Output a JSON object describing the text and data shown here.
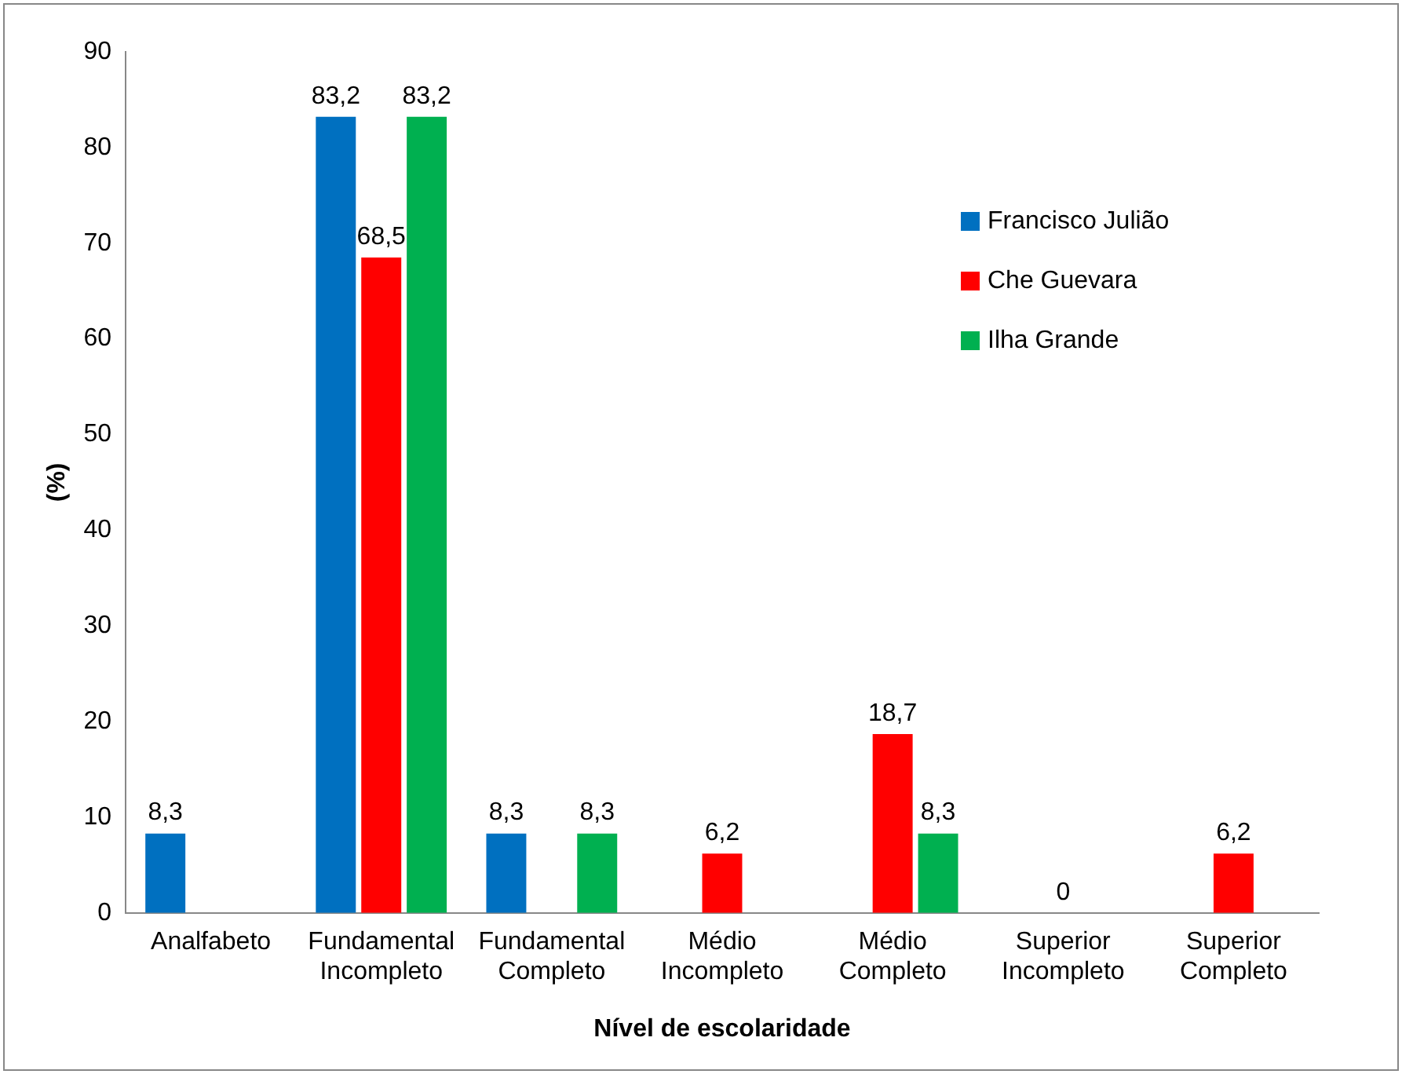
{
  "chart_data": {
    "type": "bar",
    "xlabel": "Nível de escolaridade",
    "ylabel": "(%)",
    "categories": [
      "Analfabeto",
      "Fundamental Incompleto",
      "Fundamental Completo",
      "Médio Incompleto",
      "Médio Completo",
      "Superior Incompleto",
      "Superior Completo"
    ],
    "series": [
      {
        "name": "Francisco Julião",
        "color": "#0070c0",
        "values": [
          8.3,
          83.2,
          8.3,
          null,
          null,
          null,
          null
        ],
        "value_labels": [
          "8,3",
          "83,2",
          "8,3",
          null,
          null,
          null,
          null
        ]
      },
      {
        "name": "Che Guevara",
        "color": "#ff0000",
        "values": [
          null,
          68.5,
          null,
          6.2,
          18.7,
          0,
          6.2
        ],
        "value_labels": [
          null,
          "68,5",
          null,
          "6,2",
          "18,7",
          "0",
          "6,2"
        ]
      },
      {
        "name": "Ilha Grande",
        "color": "#00b050",
        "values": [
          null,
          83.2,
          8.3,
          null,
          8.3,
          null,
          null
        ],
        "value_labels": [
          null,
          "83,2",
          "8,3",
          null,
          "8,3",
          null,
          null
        ]
      }
    ],
    "ylim": [
      0,
      90
    ],
    "yticks": [
      0,
      10,
      20,
      30,
      40,
      50,
      60,
      70,
      80,
      90
    ],
    "grid": false,
    "legend": "top right"
  }
}
